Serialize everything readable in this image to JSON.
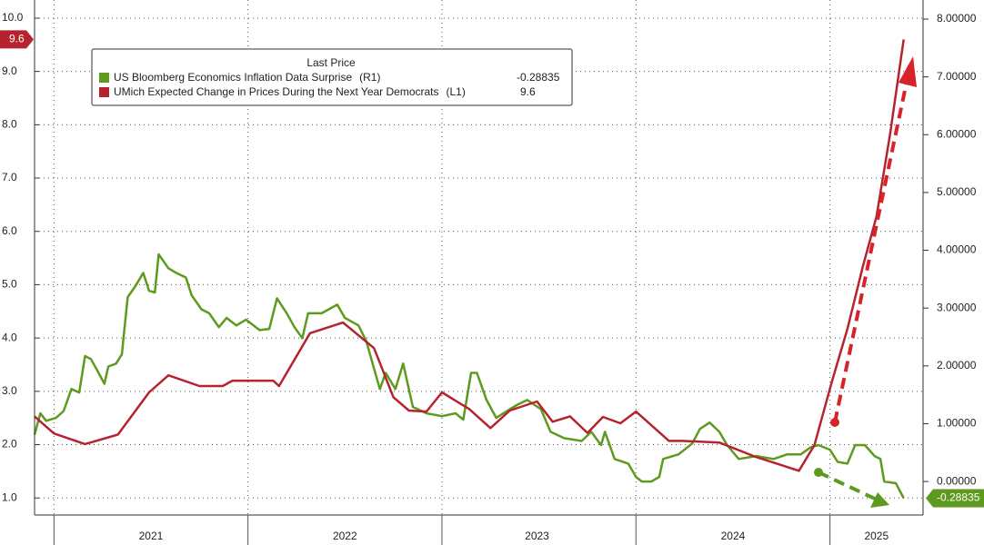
{
  "chart_data": {
    "type": "line",
    "legend_title": "Last Price",
    "xlim": [
      2020.9,
      2025.48
    ],
    "xticks": [
      {
        "value": 2021.5,
        "label": "2021"
      },
      {
        "value": 2022.5,
        "label": "2022"
      },
      {
        "value": 2023.49,
        "label": "2023"
      },
      {
        "value": 2024.5,
        "label": "2024"
      },
      {
        "value": 2025.24,
        "label": "2025"
      }
    ],
    "ylim": [
      0.68,
      10.34
    ],
    "yticks": [
      {
        "value": 1,
        "label": "1.0"
      },
      {
        "value": 2,
        "label": "2.0"
      },
      {
        "value": 3,
        "label": "3.0"
      },
      {
        "value": 4,
        "label": "4.0"
      },
      {
        "value": 5,
        "label": "5.0"
      },
      {
        "value": 6,
        "label": "6.0"
      },
      {
        "value": 7,
        "label": "7.0"
      },
      {
        "value": 8,
        "label": "8.0"
      },
      {
        "value": 9,
        "label": "9.0"
      },
      {
        "value": 10,
        "label": "10.0"
      }
    ],
    "y2lim": [
      -0.58,
      8.33
    ],
    "y2ticks": [
      {
        "value": 0,
        "label": "0.00000"
      },
      {
        "value": 1,
        "label": "1.00000"
      },
      {
        "value": 2,
        "label": "2.00000"
      },
      {
        "value": 3,
        "label": "3.00000"
      },
      {
        "value": 4,
        "label": "4.00000"
      },
      {
        "value": 5,
        "label": "5.00000"
      },
      {
        "value": 6,
        "label": "6.00000"
      },
      {
        "value": 7,
        "label": "7.00000"
      },
      {
        "value": 8,
        "label": "8.00000"
      }
    ],
    "grid": true,
    "series": [
      {
        "name": "US Bloomberg Economics Inflation Data Surprise",
        "axis_tag": "(R1)",
        "axis": "y2",
        "color": "#5e9a1e",
        "last_price": -0.28835,
        "x": [
          2020.9,
          2020.93,
          2020.96,
          2021.01,
          2021.05,
          2021.09,
          2021.13,
          2021.16,
          2021.19,
          2021.23,
          2021.26,
          2021.28,
          2021.32,
          2021.35,
          2021.38,
          2021.42,
          2021.46,
          2021.49,
          2021.52,
          2021.54,
          2021.59,
          2021.63,
          2021.68,
          2021.71,
          2021.76,
          2021.8,
          2021.85,
          2021.89,
          2021.94,
          2021.99,
          2022.06,
          2022.11,
          2022.15,
          2022.2,
          2022.24,
          2022.28,
          2022.31,
          2022.38,
          2022.46,
          2022.5,
          2022.57,
          2022.61,
          2022.64,
          2022.68,
          2022.71,
          2022.76,
          2022.8,
          2022.85,
          2022.92,
          2023.0,
          2023.07,
          2023.11,
          2023.15,
          2023.18,
          2023.23,
          2023.28,
          2023.35,
          2023.39,
          2023.44,
          2023.51,
          2023.56,
          2023.63,
          2023.72,
          2023.77,
          2023.82,
          2023.84,
          2023.89,
          2023.96,
          2024.0,
          2024.03,
          2024.08,
          2024.12,
          2024.14,
          2024.22,
          2024.29,
          2024.33,
          2024.38,
          2024.43,
          2024.47,
          2024.53,
          2024.62,
          2024.71,
          2024.78,
          2024.85,
          2024.9,
          2024.94,
          2025.0,
          2025.04,
          2025.09,
          2025.13,
          2025.18,
          2025.23,
          2025.26,
          2025.28,
          2025.34,
          2025.38
        ],
        "values": [
          0.81,
          1.18,
          1.05,
          1.1,
          1.22,
          1.6,
          1.54,
          2.17,
          2.12,
          1.88,
          1.69,
          1.99,
          2.04,
          2.2,
          3.19,
          3.38,
          3.61,
          3.3,
          3.27,
          3.93,
          3.69,
          3.61,
          3.53,
          3.22,
          2.98,
          2.91,
          2.67,
          2.83,
          2.7,
          2.8,
          2.62,
          2.64,
          3.17,
          2.91,
          2.67,
          2.48,
          2.91,
          2.91,
          3.06,
          2.83,
          2.7,
          2.43,
          2.07,
          1.6,
          1.88,
          1.6,
          2.04,
          1.29,
          1.18,
          1.13,
          1.18,
          1.07,
          1.88,
          1.88,
          1.41,
          1.1,
          1.25,
          1.33,
          1.41,
          1.25,
          0.86,
          0.75,
          0.7,
          0.86,
          0.63,
          0.86,
          0.39,
          0.31,
          0.08,
          0.0,
          0.0,
          0.08,
          0.39,
          0.47,
          0.66,
          0.91,
          1.02,
          0.86,
          0.63,
          0.39,
          0.44,
          0.39,
          0.47,
          0.47,
          0.59,
          0.63,
          0.55,
          0.34,
          0.31,
          0.63,
          0.63,
          0.44,
          0.39,
          0.0,
          -0.03,
          -0.29
        ]
      },
      {
        "name": "UMich Expected Change in Prices During the Next Year Democrats",
        "axis_tag": "(L1)",
        "axis": "y",
        "color": "#b5232f",
        "last_price": 9.6,
        "x": [
          2020.9,
          2021.0,
          2021.16,
          2021.33,
          2021.49,
          2021.59,
          2021.75,
          2021.87,
          2021.92,
          2022.13,
          2022.16,
          2022.32,
          2022.49,
          2022.65,
          2022.75,
          2022.83,
          2022.92,
          2023.0,
          2023.14,
          2023.25,
          2023.35,
          2023.49,
          2023.57,
          2023.66,
          2023.75,
          2023.83,
          2023.92,
          2024.0,
          2024.17,
          2024.24,
          2024.43,
          2024.61,
          2024.84,
          2024.92,
          2025.01,
          2025.09,
          2025.17,
          2025.24,
          2025.31,
          2025.38
        ],
        "values": [
          2.53,
          2.21,
          2.01,
          2.19,
          2.98,
          3.3,
          3.1,
          3.1,
          3.2,
          3.2,
          3.1,
          4.09,
          4.29,
          3.81,
          2.89,
          2.64,
          2.62,
          2.98,
          2.67,
          2.31,
          2.64,
          2.81,
          2.43,
          2.53,
          2.22,
          2.52,
          2.4,
          2.62,
          2.07,
          2.07,
          2.04,
          1.78,
          1.51,
          1.99,
          3.18,
          4.17,
          5.35,
          6.28,
          7.82,
          9.6
        ]
      }
    ]
  }
}
